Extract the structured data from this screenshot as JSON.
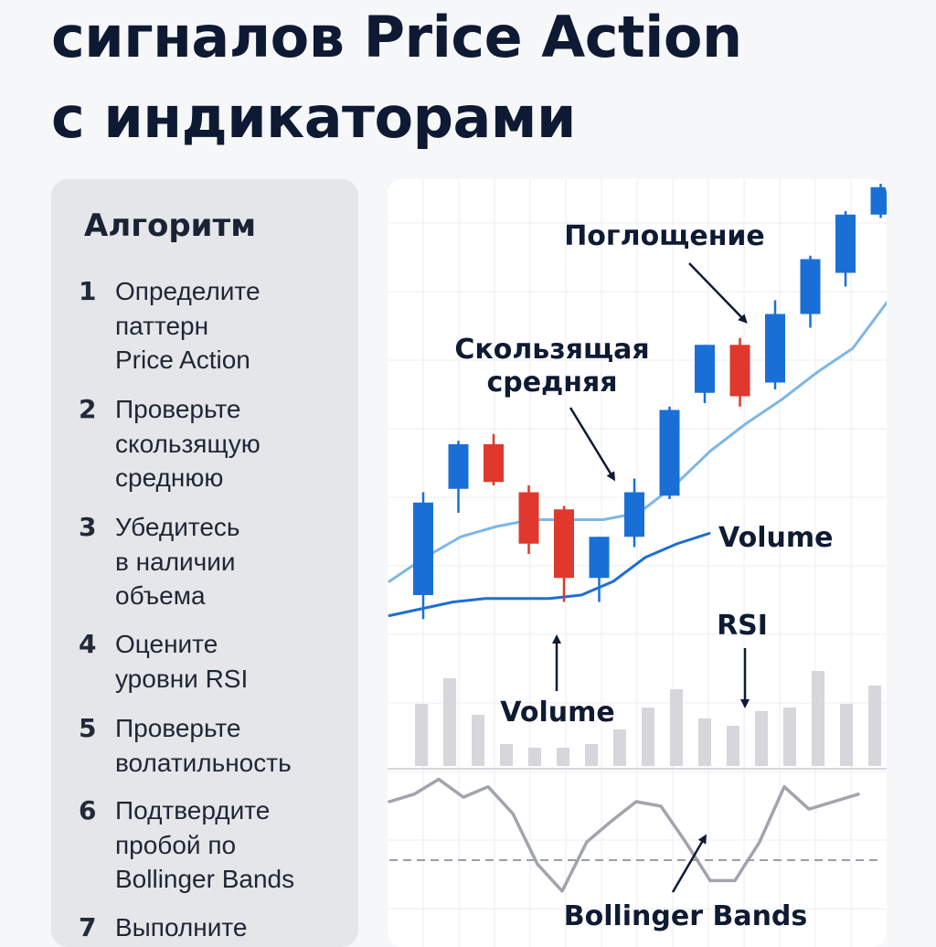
{
  "title": {
    "line1": "сигналов Price Action",
    "line2": "с индикаторами"
  },
  "algorithm": {
    "heading": "Алгоритм",
    "steps": [
      {
        "num": "1",
        "text": "Определите\nпаттерн\nPrice Action"
      },
      {
        "num": "2",
        "text": "Проверьте\nскользящую\nсреднюю"
      },
      {
        "num": "3",
        "text": "Убедитесь\nв наличии\nобъема"
      },
      {
        "num": "4",
        "text": "Оцените\nуровни RSI"
      },
      {
        "num": "5",
        "text": "Проверьте\nволатильность"
      },
      {
        "num": "6",
        "text": "Подтвердите\nпробой по\nBollinger Bands"
      },
      {
        "num": "7",
        "text": "Выполните"
      }
    ]
  },
  "chart_data": {
    "type": "candlestick",
    "title": "",
    "xlabel": "",
    "ylabel": "",
    "grid": true,
    "colors": {
      "up": "#1a6fd6",
      "down": "#e0382d",
      "moving_average": "#7eb7e6",
      "volume_line": "#1f6ed2",
      "volume_bars": "#d6d6db",
      "rsi_line": "#a1a4ab",
      "bollinger_line": "#9a9ea6",
      "annotation_text": "#0f1a33"
    },
    "candles": [
      {
        "open": 4.0,
        "high": 34.0,
        "low": -3.0,
        "close": 31.0,
        "direction": "up"
      },
      {
        "open": 35.0,
        "high": 49.0,
        "low": 28.0,
        "close": 48.0,
        "direction": "up"
      },
      {
        "open": 48.0,
        "high": 51.0,
        "low": 36.0,
        "close": 37.0,
        "direction": "down"
      },
      {
        "open": 34.0,
        "high": 36.0,
        "low": 16.0,
        "close": 19.0,
        "direction": "down"
      },
      {
        "open": 29.0,
        "high": 30.0,
        "low": 2.0,
        "close": 9.0,
        "direction": "down"
      },
      {
        "open": 9.0,
        "high": 21.0,
        "low": 2.0,
        "close": 21.0,
        "direction": "up"
      },
      {
        "open": 21.0,
        "high": 38.0,
        "low": 18.0,
        "close": 34.0,
        "direction": "up"
      },
      {
        "open": 33.0,
        "high": 59.0,
        "low": 32.0,
        "close": 58.0,
        "direction": "up"
      },
      {
        "open": 63.0,
        "high": 77.0,
        "low": 60.0,
        "close": 77.0,
        "direction": "up"
      },
      {
        "open": 77.0,
        "high": 79.0,
        "low": 59.0,
        "close": 62.0,
        "direction": "down"
      },
      {
        "open": 66.0,
        "high": 90.0,
        "low": 64.0,
        "close": 86.0,
        "direction": "up"
      },
      {
        "open": 86.0,
        "high": 103.0,
        "low": 82.0,
        "close": 102.0,
        "direction": "up"
      },
      {
        "open": 98.0,
        "high": 116.0,
        "low": 94.0,
        "close": 115.0,
        "direction": "up"
      },
      {
        "open": 115.0,
        "high": 124.0,
        "low": 114.0,
        "close": 123.0,
        "direction": "up"
      }
    ],
    "moving_average": [
      8,
      15,
      21,
      24,
      26,
      26,
      26,
      28,
      36,
      46,
      54,
      61,
      69,
      76,
      90
    ],
    "volume_line": [
      -2,
      0,
      2,
      3,
      3,
      3,
      4,
      8,
      15,
      19,
      22
    ],
    "volume_bars": [
      17,
      24,
      14,
      6,
      5,
      5,
      6,
      10,
      16,
      21,
      13,
      11,
      15,
      16,
      26,
      17,
      22
    ],
    "rsi_line": [
      30,
      30.5,
      31.5,
      30.3,
      31,
      29.2,
      25.8,
      24,
      27.3,
      28.7,
      30,
      29.7,
      27.3,
      24.7,
      24.7,
      27.3,
      31,
      29.5,
      30,
      30.5
    ],
    "bollinger_line": [
      7,
      7,
      7,
      7,
      7,
      7,
      7,
      7,
      7,
      7,
      7,
      7,
      7,
      7,
      7,
      7,
      7,
      7,
      7
    ],
    "annotations": {
      "engulfing": "Поглощение",
      "moving_average": "Скользящая\nсредняя",
      "volume_line": "Volume",
      "volume_bars": "Volume",
      "rsi": "RSI",
      "bollinger": "Bollinger Bands"
    }
  }
}
